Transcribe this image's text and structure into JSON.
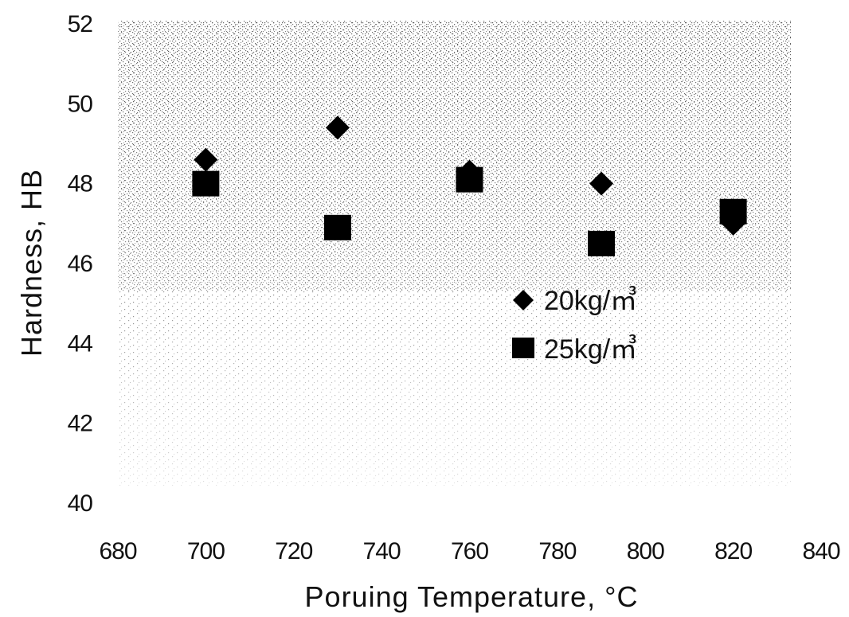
{
  "chart_data": {
    "type": "scatter",
    "xlabel": "Poruing Temperature, °C",
    "ylabel": "Hardness,  HB",
    "xlim": [
      680,
      840
    ],
    "ylim": [
      40,
      52
    ],
    "xticks": [
      680,
      700,
      720,
      740,
      760,
      780,
      800,
      820,
      840
    ],
    "yticks": [
      40,
      42,
      44,
      46,
      48,
      50,
      52
    ],
    "grid": false,
    "legend_position": "center-right",
    "series": [
      {
        "name": "20kg/㎥",
        "marker": "diamond",
        "color": "#000000",
        "points": [
          {
            "x": 700,
            "y": 48.6
          },
          {
            "x": 730,
            "y": 49.4
          },
          {
            "x": 760,
            "y": 48.3
          },
          {
            "x": 790,
            "y": 48.0
          },
          {
            "x": 820,
            "y": 47.0
          }
        ]
      },
      {
        "name": "25kg/㎥",
        "marker": "square",
        "color": "#000000",
        "points": [
          {
            "x": 700,
            "y": 48.0
          },
          {
            "x": 730,
            "y": 46.9
          },
          {
            "x": 760,
            "y": 48.1
          },
          {
            "x": 790,
            "y": 46.5
          },
          {
            "x": 820,
            "y": 47.3
          }
        ]
      }
    ]
  }
}
